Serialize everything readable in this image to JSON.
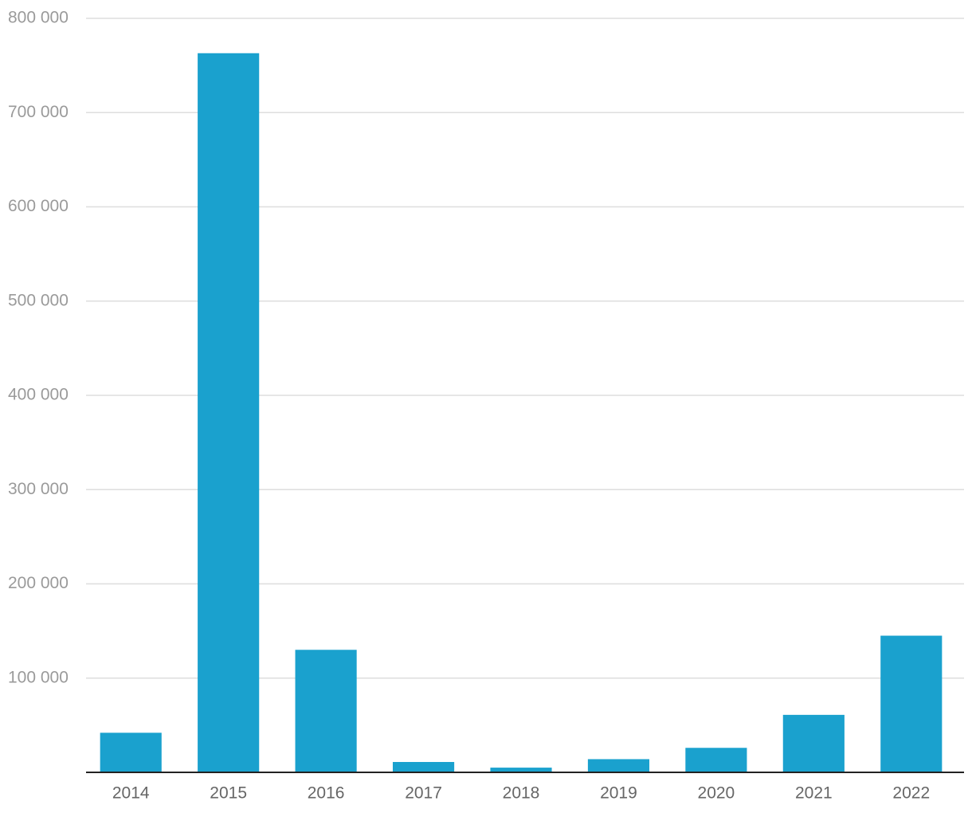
{
  "chart_data": {
    "type": "bar",
    "categories": [
      "2014",
      "2015",
      "2016",
      "2017",
      "2018",
      "2019",
      "2020",
      "2021",
      "2022"
    ],
    "values": [
      42000,
      763000,
      130000,
      11000,
      5000,
      14000,
      26000,
      61000,
      145000
    ],
    "color": "#1aa1ce",
    "ylim": [
      0,
      800000
    ],
    "yticks": [
      {
        "value": 100000,
        "label": "100 000"
      },
      {
        "value": 200000,
        "label": "200 000"
      },
      {
        "value": 300000,
        "label": "300 000"
      },
      {
        "value": 400000,
        "label": "400 000"
      },
      {
        "value": 500000,
        "label": "500 000"
      },
      {
        "value": 600000,
        "label": "600 000"
      },
      {
        "value": 700000,
        "label": "700 000"
      },
      {
        "value": 800000,
        "label": "800 000"
      }
    ],
    "grid": true
  }
}
